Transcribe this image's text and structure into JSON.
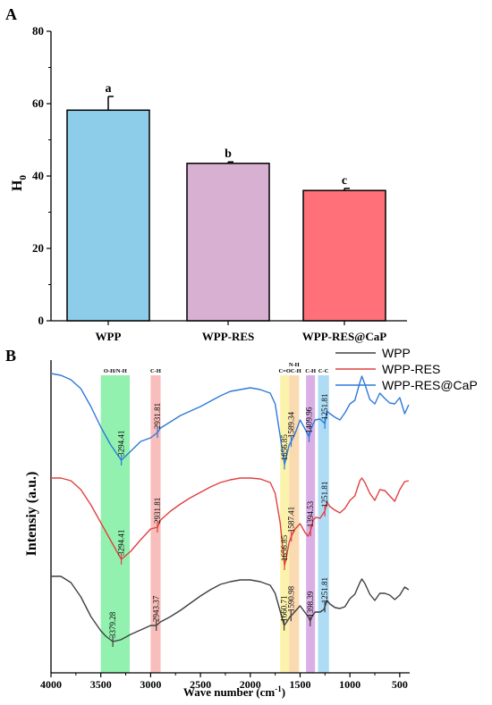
{
  "chart_data": [
    {
      "panel": "A",
      "type": "bar",
      "categories": [
        "WPP",
        "WPP-RES",
        "WPP-RES@CaP"
      ],
      "values": [
        58.2,
        43.5,
        36.0
      ],
      "errors": [
        3.8,
        0.4,
        0.6
      ],
      "significance": [
        "a",
        "b",
        "c"
      ],
      "colors": [
        "#8ecde9",
        "#d8b0d2",
        "#ff7079"
      ],
      "ylabel": "H",
      "ylabel_sub": "0",
      "ylim": [
        0,
        80
      ],
      "yticks": [
        "0",
        "20",
        "40",
        "60",
        "80"
      ],
      "grid": false
    },
    {
      "panel": "B",
      "type": "line",
      "xlabel": "Wave number (cm",
      "xlabel_sup": "-1",
      "xlabel_end": ")",
      "ylabel": "Intensiy (a.u.)",
      "xlim": [
        4000,
        400
      ],
      "xticks": [
        "4000",
        "3500",
        "3000",
        "2500",
        "2000",
        "1500",
        "1000",
        "500"
      ],
      "legend_position": "top-right",
      "bands": [
        {
          "label": "O-H/N-H",
          "from": 3500,
          "to": 3210,
          "color": "#86f0a6"
        },
        {
          "label": "C-H",
          "from": 3000,
          "to": 2900,
          "color": "#f7b7b5"
        },
        {
          "label": "C=O",
          "from": 1700,
          "to": 1610,
          "color": "#fbf2a3"
        },
        {
          "label": "C-H",
          "from": 1610,
          "to": 1510,
          "color": "#f9d6a8"
        },
        {
          "label": "N-H",
          "from": 1610,
          "to": 1510,
          "color": "#f9d6a8"
        },
        {
          "label": "C-H",
          "from": 1440,
          "to": 1350,
          "color": "#d6a6e2"
        },
        {
          "label": "C-C",
          "from": 1320,
          "to": 1210,
          "color": "#a6d8f4"
        }
      ],
      "series": [
        {
          "name": "WPP",
          "color": "#404040",
          "points": [
            [
              4000,
              645
            ],
            [
              3900,
              645
            ],
            [
              3800,
              652
            ],
            [
              3700,
              668
            ],
            [
              3600,
              690
            ],
            [
              3500,
              706
            ],
            [
              3450,
              712
            ],
            [
              3380,
              718
            ],
            [
              3300,
              716
            ],
            [
              3200,
              710
            ],
            [
              3100,
              705
            ],
            [
              3000,
              700
            ],
            [
              2943,
              700
            ],
            [
              2900,
              696
            ],
            [
              2800,
              690
            ],
            [
              2700,
              683
            ],
            [
              2600,
              675
            ],
            [
              2500,
              667
            ],
            [
              2400,
              660
            ],
            [
              2300,
              654
            ],
            [
              2200,
              651
            ],
            [
              2100,
              649
            ],
            [
              2000,
              649
            ],
            [
              1900,
              651
            ],
            [
              1800,
              655
            ],
            [
              1750,
              664
            ],
            [
              1700,
              684
            ],
            [
              1660,
              700
            ],
            [
              1640,
              697
            ],
            [
              1600,
              690
            ],
            [
              1580,
              688
            ],
            [
              1540,
              683
            ],
            [
              1500,
              678
            ],
            [
              1460,
              684
            ],
            [
              1420,
              690
            ],
            [
              1398,
              695
            ],
            [
              1380,
              690
            ],
            [
              1350,
              685
            ],
            [
              1300,
              685
            ],
            [
              1260,
              682
            ],
            [
              1230,
              672
            ],
            [
              1200,
              676
            ],
            [
              1150,
              680
            ],
            [
              1100,
              681
            ],
            [
              1050,
              679
            ],
            [
              1000,
              670
            ],
            [
              950,
              665
            ],
            [
              900,
              652
            ],
            [
              880,
              648
            ],
            [
              850,
              653
            ],
            [
              800,
              665
            ],
            [
              750,
              672
            ],
            [
              700,
              664
            ],
            [
              650,
              664
            ],
            [
              600,
              666
            ],
            [
              550,
              671
            ],
            [
              500,
              666
            ],
            [
              450,
              657
            ],
            [
              410,
              660
            ]
          ],
          "peaks": [
            {
              "x": 3379.28,
              "label": "3379.28"
            },
            {
              "x": 2943.37,
              "label": "2943.37"
            },
            {
              "x": 1660.71,
              "label": "1660.71"
            },
            {
              "x": 1590.98,
              "label": "1590.98"
            },
            {
              "x": 1398.39,
              "label": "1398.39"
            },
            {
              "x": 1251.81,
              "label": "1251.81"
            }
          ]
        },
        {
          "name": "WPP-RES",
          "color": "#e04040",
          "points": [
            [
              4000,
              535
            ],
            [
              3900,
              535
            ],
            [
              3800,
              538
            ],
            [
              3700,
              548
            ],
            [
              3600,
              565
            ],
            [
              3500,
              585
            ],
            [
              3400,
              605
            ],
            [
              3294,
              626
            ],
            [
              3200,
              617
            ],
            [
              3100,
              604
            ],
            [
              3000,
              592
            ],
            [
              2931,
              590
            ],
            [
              2900,
              582
            ],
            [
              2800,
              572
            ],
            [
              2700,
              564
            ],
            [
              2600,
              557
            ],
            [
              2500,
              551
            ],
            [
              2400,
              545
            ],
            [
              2300,
              540
            ],
            [
              2200,
              537
            ],
            [
              2100,
              535
            ],
            [
              2000,
              535
            ],
            [
              1900,
              536
            ],
            [
              1800,
              540
            ],
            [
              1750,
              552
            ],
            [
              1700,
              585
            ],
            [
              1656,
              633
            ],
            [
              1640,
              625
            ],
            [
              1610,
              607
            ],
            [
              1587,
              600
            ],
            [
              1550,
              592
            ],
            [
              1500,
              586
            ],
            [
              1450,
              596
            ],
            [
              1420,
              600
            ],
            [
              1394,
              594
            ],
            [
              1370,
              582
            ],
            [
              1340,
              579
            ],
            [
              1300,
              580
            ],
            [
              1252,
              572
            ],
            [
              1230,
              562
            ],
            [
              1200,
              567
            ],
            [
              1150,
              571
            ],
            [
              1100,
              574
            ],
            [
              1050,
              569
            ],
            [
              1000,
              560
            ],
            [
              950,
              555
            ],
            [
              900,
              538
            ],
            [
              880,
              535
            ],
            [
              850,
              540
            ],
            [
              800,
              552
            ],
            [
              750,
              560
            ],
            [
              700,
              548
            ],
            [
              650,
              549
            ],
            [
              600,
              555
            ],
            [
              550,
              561
            ],
            [
              500,
              548
            ],
            [
              450,
              539
            ],
            [
              410,
              538
            ]
          ],
          "peaks": [
            {
              "x": 3294.41,
              "label": "3294.41"
            },
            {
              "x": 2931.81,
              "label": "2931.81"
            },
            {
              "x": 1656.85,
              "label": "1656.85"
            },
            {
              "x": 1587.41,
              "label": "1587.41"
            },
            {
              "x": 1394.53,
              "label": "1394.53"
            },
            {
              "x": 1251.81,
              "label": "1251.81"
            }
          ]
        },
        {
          "name": "WPP-RES@CaP",
          "color": "#2f7ad8",
          "points": [
            [
              4000,
              418
            ],
            [
              3900,
              420
            ],
            [
              3800,
              425
            ],
            [
              3700,
              435
            ],
            [
              3600,
              455
            ],
            [
              3500,
              478
            ],
            [
              3400,
              498
            ],
            [
              3294,
              515
            ],
            [
              3200,
              505
            ],
            [
              3100,
              494
            ],
            [
              3000,
              490
            ],
            [
              2931,
              484
            ],
            [
              2900,
              479
            ],
            [
              2800,
              472
            ],
            [
              2700,
              465
            ],
            [
              2600,
              460
            ],
            [
              2500,
              455
            ],
            [
              2400,
              449
            ],
            [
              2300,
              443
            ],
            [
              2200,
              438
            ],
            [
              2100,
              436
            ],
            [
              2000,
              434
            ],
            [
              1900,
              436
            ],
            [
              1800,
              440
            ],
            [
              1750,
              452
            ],
            [
              1700,
              488
            ],
            [
              1656,
              520
            ],
            [
              1640,
              512
            ],
            [
              1610,
              498
            ],
            [
              1589,
              494
            ],
            [
              1550,
              485
            ],
            [
              1500,
              470
            ],
            [
              1450,
              480
            ],
            [
              1410,
              489
            ],
            [
              1390,
              480
            ],
            [
              1350,
              470
            ],
            [
              1300,
              469
            ],
            [
              1252,
              474
            ],
            [
              1230,
              460
            ],
            [
              1200,
              463
            ],
            [
              1150,
              467
            ],
            [
              1100,
              470
            ],
            [
              1050,
              462
            ],
            [
              1000,
              452
            ],
            [
              950,
              448
            ],
            [
              900,
              428
            ],
            [
              880,
              421
            ],
            [
              850,
              430
            ],
            [
              800,
              447
            ],
            [
              750,
              452
            ],
            [
              700,
              440
            ],
            [
              650,
              446
            ],
            [
              600,
              451
            ],
            [
              550,
              452
            ],
            [
              500,
              445
            ],
            [
              450,
              463
            ],
            [
              410,
              453
            ]
          ],
          "peaks": [
            {
              "x": 3294.41,
              "label": "3294.41"
            },
            {
              "x": 2931.81,
              "label": "2931.81"
            },
            {
              "x": 1656.85,
              "label": "1656.85"
            },
            {
              "x": 1589.34,
              "label": "1589.34"
            },
            {
              "x": 1409.96,
              "label": "1409.96"
            },
            {
              "x": 1251.81,
              "label": "1251.81"
            }
          ]
        }
      ]
    }
  ]
}
